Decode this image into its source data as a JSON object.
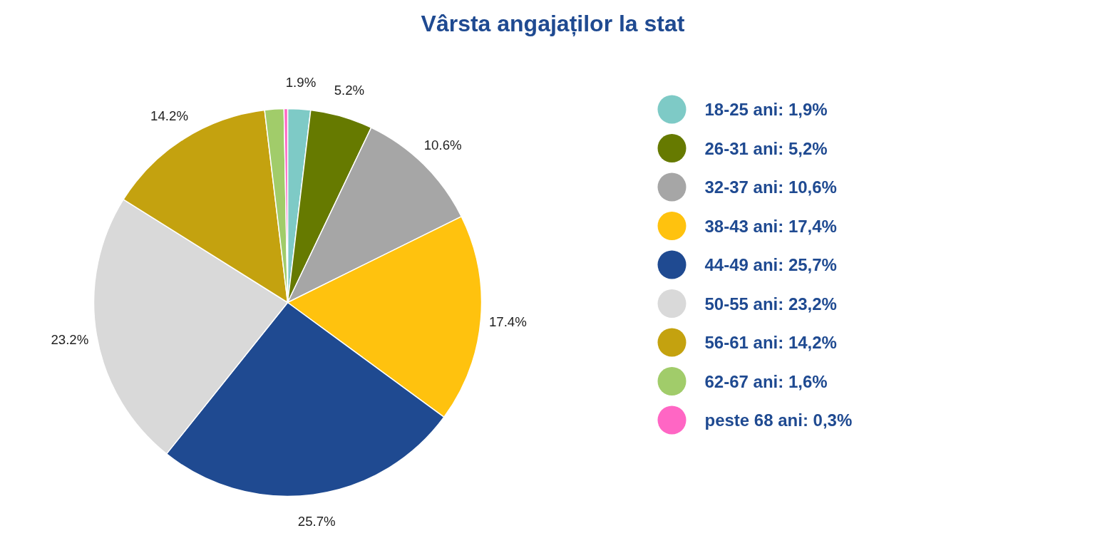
{
  "chart_data": {
    "type": "pie",
    "title": "Vârsta angajaților la stat",
    "categories": [
      "18-25 ani: 1,9%",
      "26-31 ani: 5,2%",
      "32-37 ani: 10,6%",
      "38-43 ani: 17,4%",
      "44-49 ani: 25,7%",
      "50-55 ani: 23,2%",
      "56-61 ani: 14,2%",
      "62-67 ani: 1,6%",
      "peste 68 ani: 0,3%"
    ],
    "values": [
      1.9,
      5.2,
      10.6,
      17.4,
      25.7,
      23.2,
      14.2,
      1.6,
      0.3
    ],
    "colors": [
      "#7ecac6",
      "#667a00",
      "#a6a6a6",
      "#ffc20e",
      "#1f4a91",
      "#d9d9d9",
      "#c4a20f",
      "#a1cc6a",
      "#ff66c4"
    ],
    "value_labels": [
      "1.9%",
      "5.2%",
      "10.6%",
      "17.4%",
      "25.7%",
      "23.2%",
      "14.2%",
      null,
      null
    ],
    "legend": "right"
  }
}
